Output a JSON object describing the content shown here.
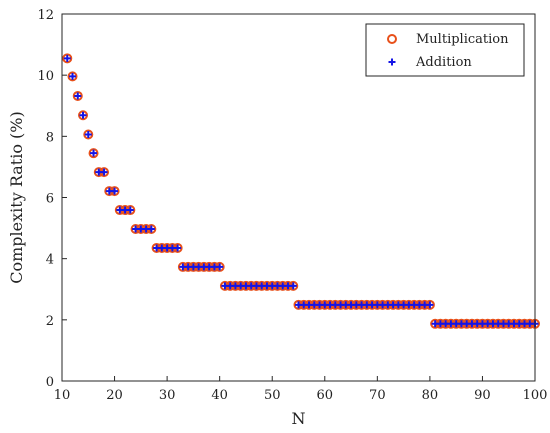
{
  "chart_data": {
    "type": "scatter",
    "title": "",
    "xlabel": "N",
    "ylabel": "Complexity Ratio (%)",
    "xlim": [
      10,
      100
    ],
    "ylim": [
      0,
      12
    ],
    "xticks": [
      10,
      20,
      30,
      40,
      50,
      60,
      70,
      80,
      90,
      100
    ],
    "yticks": [
      0,
      2,
      4,
      6,
      8,
      10,
      12
    ],
    "grid": false,
    "legend": {
      "placement": "top-right"
    },
    "x": [
      11,
      12,
      13,
      14,
      15,
      16,
      17,
      18,
      19,
      20,
      21,
      22,
      23,
      24,
      25,
      26,
      27,
      28,
      29,
      30,
      31,
      32,
      33,
      34,
      35,
      36,
      37,
      38,
      39,
      40,
      41,
      42,
      43,
      44,
      45,
      46,
      47,
      48,
      49,
      50,
      51,
      52,
      53,
      54,
      55,
      56,
      57,
      58,
      59,
      60,
      61,
      62,
      63,
      64,
      65,
      66,
      67,
      68,
      69,
      70,
      71,
      72,
      73,
      74,
      75,
      76,
      77,
      78,
      79,
      80,
      81,
      82,
      83,
      84,
      85,
      86,
      87,
      88,
      89,
      90,
      91,
      92,
      93,
      94,
      95,
      96,
      97,
      98,
      99,
      100
    ],
    "series": [
      {
        "name": "Multiplication",
        "marker": "circle",
        "color": "#E8501A",
        "values": [
          10.55,
          9.96,
          9.32,
          8.69,
          8.06,
          7.45,
          6.83,
          6.83,
          6.21,
          6.21,
          5.59,
          5.59,
          5.59,
          4.97,
          4.97,
          4.97,
          4.97,
          4.35,
          4.35,
          4.35,
          4.35,
          4.35,
          3.73,
          3.73,
          3.73,
          3.73,
          3.73,
          3.73,
          3.73,
          3.73,
          3.11,
          3.11,
          3.11,
          3.11,
          3.11,
          3.11,
          3.11,
          3.11,
          3.11,
          3.11,
          3.11,
          3.11,
          3.11,
          3.11,
          2.49,
          2.49,
          2.49,
          2.49,
          2.49,
          2.49,
          2.49,
          2.49,
          2.49,
          2.49,
          2.49,
          2.49,
          2.49,
          2.49,
          2.49,
          2.49,
          2.49,
          2.49,
          2.49,
          2.49,
          2.49,
          2.49,
          2.49,
          2.49,
          2.49,
          2.49,
          1.87,
          1.87,
          1.87,
          1.87,
          1.87,
          1.87,
          1.87,
          1.87,
          1.87,
          1.87,
          1.87,
          1.87,
          1.87,
          1.87,
          1.87,
          1.87,
          1.87,
          1.87,
          1.87,
          1.87
        ]
      },
      {
        "name": "Addition",
        "marker": "plus",
        "color": "#1414E6",
        "values": [
          10.55,
          9.96,
          9.32,
          8.69,
          8.06,
          7.45,
          6.83,
          6.83,
          6.21,
          6.21,
          5.59,
          5.59,
          5.59,
          4.97,
          4.97,
          4.97,
          4.97,
          4.35,
          4.35,
          4.35,
          4.35,
          4.35,
          3.73,
          3.73,
          3.73,
          3.73,
          3.73,
          3.73,
          3.73,
          3.73,
          3.11,
          3.11,
          3.11,
          3.11,
          3.11,
          3.11,
          3.11,
          3.11,
          3.11,
          3.11,
          3.11,
          3.11,
          3.11,
          3.11,
          2.49,
          2.49,
          2.49,
          2.49,
          2.49,
          2.49,
          2.49,
          2.49,
          2.49,
          2.49,
          2.49,
          2.49,
          2.49,
          2.49,
          2.49,
          2.49,
          2.49,
          2.49,
          2.49,
          2.49,
          2.49,
          2.49,
          2.49,
          2.49,
          2.49,
          2.49,
          1.87,
          1.87,
          1.87,
          1.87,
          1.87,
          1.87,
          1.87,
          1.87,
          1.87,
          1.87,
          1.87,
          1.87,
          1.87,
          1.87,
          1.87,
          1.87,
          1.87,
          1.87,
          1.87,
          1.87
        ]
      }
    ]
  }
}
